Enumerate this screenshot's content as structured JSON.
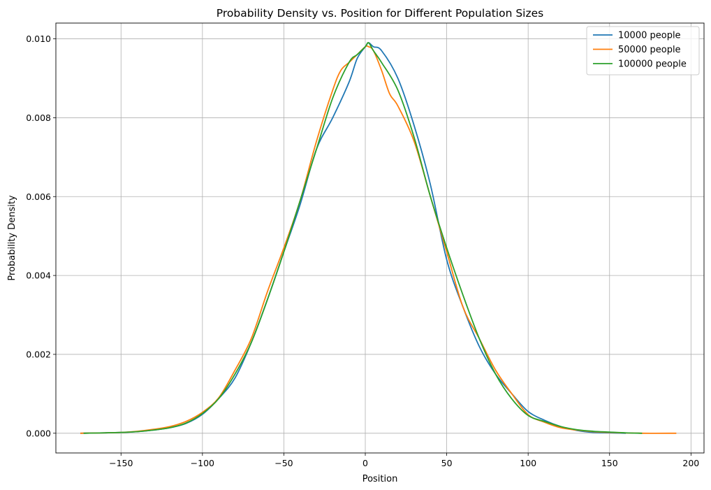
{
  "chart_data": {
    "type": "line",
    "title": "Probability Density vs. Position for Different Population Sizes",
    "xlabel": "Position",
    "ylabel": "Probability Density",
    "xlim": [
      -190,
      208
    ],
    "ylim": [
      -0.0005,
      0.0104
    ],
    "xticks": [
      -150,
      -100,
      -50,
      0,
      50,
      100,
      150,
      200
    ],
    "xtick_labels": [
      "−150",
      "−100",
      "−50",
      "0",
      "50",
      "100",
      "150",
      "200"
    ],
    "yticks": [
      0.0,
      0.002,
      0.004,
      0.006,
      0.008,
      0.01
    ],
    "ytick_labels": [
      "0.000",
      "0.002",
      "0.004",
      "0.006",
      "0.008",
      "0.010"
    ],
    "grid": true,
    "legend_position": "top-right",
    "series": [
      {
        "name": "10000 people",
        "color": "#1f77b4",
        "points": [
          [
            -175,
            0.0
          ],
          [
            -160,
            1e-05
          ],
          [
            -150,
            2e-05
          ],
          [
            -140,
            4e-05
          ],
          [
            -130,
            8e-05
          ],
          [
            -120,
            0.00014
          ],
          [
            -110,
            0.00025
          ],
          [
            -100,
            0.00048
          ],
          [
            -90,
            0.00088
          ],
          [
            -80,
            0.0014
          ],
          [
            -70,
            0.0023
          ],
          [
            -60,
            0.0034
          ],
          [
            -50,
            0.0046
          ],
          [
            -40,
            0.0058
          ],
          [
            -30,
            0.0072
          ],
          [
            -20,
            0.008
          ],
          [
            -10,
            0.0089
          ],
          [
            -5,
            0.0095
          ],
          [
            0,
            0.0098
          ],
          [
            2,
            0.0099
          ],
          [
            5,
            0.0098
          ],
          [
            10,
            0.0097
          ],
          [
            20,
            0.009
          ],
          [
            30,
            0.0078
          ],
          [
            40,
            0.0063
          ],
          [
            50,
            0.0044
          ],
          [
            60,
            0.0032
          ],
          [
            70,
            0.0022
          ],
          [
            80,
            0.0015
          ],
          [
            90,
            0.001
          ],
          [
            100,
            0.00055
          ],
          [
            110,
            0.00033
          ],
          [
            120,
            0.00017
          ],
          [
            130,
            7e-05
          ],
          [
            140,
            2e-05
          ],
          [
            150,
            1e-05
          ],
          [
            160,
            0.0
          ]
        ]
      },
      {
        "name": "50000 people",
        "color": "#ff7f0e",
        "points": [
          [
            -175,
            0.0
          ],
          [
            -160,
            1e-05
          ],
          [
            -150,
            2e-05
          ],
          [
            -140,
            5e-05
          ],
          [
            -130,
            0.0001
          ],
          [
            -120,
            0.00017
          ],
          [
            -110,
            0.0003
          ],
          [
            -100,
            0.00053
          ],
          [
            -90,
            0.0009
          ],
          [
            -80,
            0.0016
          ],
          [
            -70,
            0.0024
          ],
          [
            -60,
            0.0036
          ],
          [
            -50,
            0.0047
          ],
          [
            -40,
            0.0059
          ],
          [
            -30,
            0.0074
          ],
          [
            -20,
            0.0087
          ],
          [
            -15,
            0.0092
          ],
          [
            -10,
            0.0094
          ],
          [
            -5,
            0.0096
          ],
          [
            0,
            0.0098
          ],
          [
            2,
            0.0098
          ],
          [
            5,
            0.0097
          ],
          [
            10,
            0.0092
          ],
          [
            15,
            0.0086
          ],
          [
            20,
            0.0083
          ],
          [
            30,
            0.0074
          ],
          [
            40,
            0.006
          ],
          [
            50,
            0.0046
          ],
          [
            60,
            0.0032
          ],
          [
            70,
            0.0024
          ],
          [
            80,
            0.0016
          ],
          [
            90,
            0.001
          ],
          [
            100,
            0.00047
          ],
          [
            110,
            0.00028
          ],
          [
            120,
            0.00014
          ],
          [
            130,
            8e-05
          ],
          [
            140,
            4e-05
          ],
          [
            150,
            2e-05
          ],
          [
            170,
            0.0
          ],
          [
            191,
            0.0
          ]
        ]
      },
      {
        "name": "100000 people",
        "color": "#2ca02c",
        "points": [
          [
            -173,
            0.0
          ],
          [
            -160,
            1e-05
          ],
          [
            -150,
            2e-05
          ],
          [
            -140,
            4e-05
          ],
          [
            -130,
            8e-05
          ],
          [
            -120,
            0.00014
          ],
          [
            -110,
            0.00026
          ],
          [
            -100,
            0.0005
          ],
          [
            -90,
            0.00088
          ],
          [
            -80,
            0.0015
          ],
          [
            -70,
            0.0023
          ],
          [
            -60,
            0.0034
          ],
          [
            -50,
            0.0046
          ],
          [
            -40,
            0.0059
          ],
          [
            -30,
            0.0072
          ],
          [
            -20,
            0.0085
          ],
          [
            -10,
            0.0094
          ],
          [
            -5,
            0.0096
          ],
          [
            0,
            0.0098
          ],
          [
            2,
            0.0099
          ],
          [
            5,
            0.0097
          ],
          [
            10,
            0.0094
          ],
          [
            20,
            0.0087
          ],
          [
            30,
            0.0075
          ],
          [
            40,
            0.006
          ],
          [
            50,
            0.0047
          ],
          [
            60,
            0.0035
          ],
          [
            70,
            0.0024
          ],
          [
            80,
            0.0015
          ],
          [
            90,
            0.00087
          ],
          [
            100,
            0.00045
          ],
          [
            110,
            0.0003
          ],
          [
            120,
            0.00017
          ],
          [
            130,
            9e-05
          ],
          [
            140,
            5e-05
          ],
          [
            150,
            3e-05
          ],
          [
            160,
            1e-05
          ],
          [
            170,
            0.0
          ]
        ]
      }
    ]
  }
}
